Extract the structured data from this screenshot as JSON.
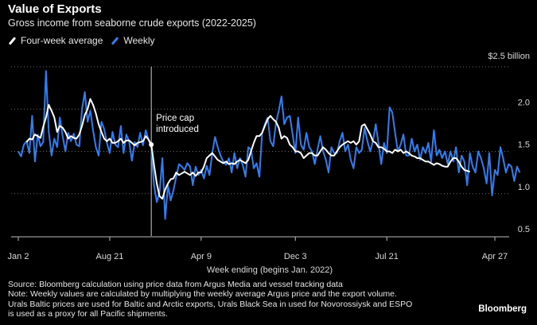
{
  "chart_data": {
    "type": "line",
    "title": "Value of Exports",
    "subtitle": "Gross income from seaborne crude exports (2022-2025)",
    "xlabel": "Week ending (begins Jan. 2022)",
    "ylabel": "",
    "ylim": [
      0.5,
      2.5
    ],
    "yticks": [
      {
        "value": 2.5,
        "label": "$2.5 billion"
      },
      {
        "value": 2.0,
        "label": "2.0"
      },
      {
        "value": 1.5,
        "label": "1.5"
      },
      {
        "value": 1.0,
        "label": "1.0"
      },
      {
        "value": 0.5,
        "label": "0.5"
      }
    ],
    "xticks": [
      {
        "week": 0,
        "label": "Jan 2"
      },
      {
        "week": 33,
        "label": "Aug 21"
      },
      {
        "week": 66,
        "label": "Apr 9"
      },
      {
        "week": 100,
        "label": "Dec 3"
      },
      {
        "week": 133,
        "label": "Jul 21"
      },
      {
        "week": 172,
        "label": "Apr 27"
      }
    ],
    "annotation": {
      "week": 48,
      "lines": [
        "Price cap",
        "introduced"
      ]
    },
    "legend": [
      "Four-week average",
      "Weekly"
    ],
    "series": [
      {
        "name": "Weekly",
        "color": "#2f7ff0",
        "values": [
          1.5,
          1.44,
          1.58,
          1.62,
          1.48,
          1.92,
          1.38,
          1.7,
          1.56,
          1.61,
          2.45,
          1.73,
          1.45,
          1.65,
          1.55,
          1.9,
          1.68,
          1.5,
          1.72,
          1.62,
          1.71,
          1.58,
          1.56,
          2.0,
          2.2,
          1.85,
          1.98,
          1.75,
          1.55,
          1.45,
          1.85,
          1.76,
          1.6,
          1.48,
          1.73,
          1.58,
          1.55,
          1.8,
          1.48,
          1.7,
          1.62,
          1.39,
          1.61,
          1.55,
          1.72,
          1.57,
          1.75,
          1.64,
          1.54,
          1.1,
          0.9,
          1.02,
          1.42,
          0.7,
          1.1,
          0.92,
          1.04,
          1.2,
          1.35,
          1.32,
          1.28,
          1.36,
          1.32,
          1.1,
          1.32,
          1.22,
          1.28,
          1.18,
          1.33,
          1.22,
          1.48,
          1.67,
          1.55,
          1.45,
          1.38,
          1.34,
          1.42,
          1.25,
          1.48,
          1.3,
          1.42,
          1.34,
          1.2,
          1.55,
          1.52,
          1.3,
          1.36,
          1.2,
          1.72,
          1.82,
          1.9,
          1.62,
          1.56,
          1.84,
          1.98,
          2.15,
          1.82,
          1.9,
          1.92,
          1.7,
          1.48,
          1.9,
          1.58,
          1.52,
          1.72,
          1.55,
          1.5,
          1.35,
          1.52,
          1.68,
          1.5,
          1.4,
          1.25,
          1.55,
          1.48,
          1.48,
          1.62,
          1.72,
          1.5,
          1.58,
          1.4,
          1.3,
          1.55,
          1.48,
          1.52,
          1.78,
          1.62,
          1.5,
          1.62,
          1.82,
          1.6,
          1.35,
          1.6,
          1.48,
          2.02,
          1.96,
          1.72,
          1.5,
          1.58,
          1.7,
          1.45,
          1.45,
          1.65,
          1.5,
          1.58,
          1.4,
          1.55,
          1.48,
          1.6,
          1.38,
          1.75,
          1.45,
          1.52,
          1.42,
          1.5,
          1.35,
          1.5,
          1.38,
          1.55,
          1.25,
          1.45,
          1.38,
          1.1,
          1.48,
          1.32,
          1.25,
          1.5,
          1.42,
          1.3,
          1.12,
          1.48,
          0.98,
          1.28,
          1.22,
          1.55,
          1.42,
          1.25,
          1.35,
          1.32,
          1.15,
          1.32,
          1.25
        ]
      },
      {
        "name": "Four-week average",
        "color": "#ffffff",
        "start_week": 3,
        "values": [
          1.61,
          1.65,
          1.64,
          1.7,
          1.68,
          1.66,
          1.79,
          1.9,
          2.05,
          1.98,
          1.9,
          1.73,
          1.8,
          1.78,
          1.73,
          1.65,
          1.68,
          1.66,
          1.65,
          1.7,
          1.8,
          1.93,
          2.0,
          2.12,
          2.05,
          1.95,
          1.82,
          1.73,
          1.65,
          1.62,
          1.65,
          1.6,
          1.6,
          1.62,
          1.65,
          1.6,
          1.63,
          1.63,
          1.6,
          1.57,
          1.6,
          1.61,
          1.62,
          1.68,
          1.64,
          1.58,
          1.34,
          1.12,
          0.97,
          0.94,
          1.05,
          1.12,
          1.17,
          1.18,
          1.25,
          1.22,
          1.24,
          1.26,
          1.24,
          1.22,
          1.25,
          1.21,
          1.25,
          1.25,
          1.32,
          1.42,
          1.45,
          1.48,
          1.44,
          1.4,
          1.38,
          1.36,
          1.38,
          1.35,
          1.36,
          1.35,
          1.38,
          1.4,
          1.38,
          1.36,
          1.4,
          1.5,
          1.6,
          1.68,
          1.68,
          1.72,
          1.8,
          1.88,
          1.92,
          1.88,
          1.85,
          1.78,
          1.65,
          1.68,
          1.66,
          1.58,
          1.55,
          1.5,
          1.5,
          1.48,
          1.42,
          1.45,
          1.48,
          1.48,
          1.45,
          1.45,
          1.5,
          1.55,
          1.52,
          1.48,
          1.45,
          1.45,
          1.5,
          1.55,
          1.58,
          1.6,
          1.62,
          1.6,
          1.62,
          1.58,
          1.62,
          1.8,
          1.82,
          1.76,
          1.7,
          1.62,
          1.6,
          1.55,
          1.55,
          1.53,
          1.5,
          1.5,
          1.48,
          1.52,
          1.5,
          1.52,
          1.48,
          1.5,
          1.48,
          1.45,
          1.44,
          1.42,
          1.42,
          1.4,
          1.38,
          1.38,
          1.36,
          1.34,
          1.36,
          1.35,
          1.33,
          1.32,
          1.32,
          1.38,
          1.42,
          1.42,
          1.38,
          1.32,
          1.28,
          1.27,
          1.26
        ]
      }
    ]
  },
  "footnote": "Source: Bloomberg calculation using price data from Argus Media and vessel tracking data\nNote: Weekly values are calculated by multiplying the weekly average Argus price and the export volume.\nUrals Baltic prices are used for Baltic and Arctic exports, Urals Black Sea in used for Novorossiysk and ESPO\nis used as a proxy for all Pacific shipments.",
  "brand": "Bloomberg"
}
